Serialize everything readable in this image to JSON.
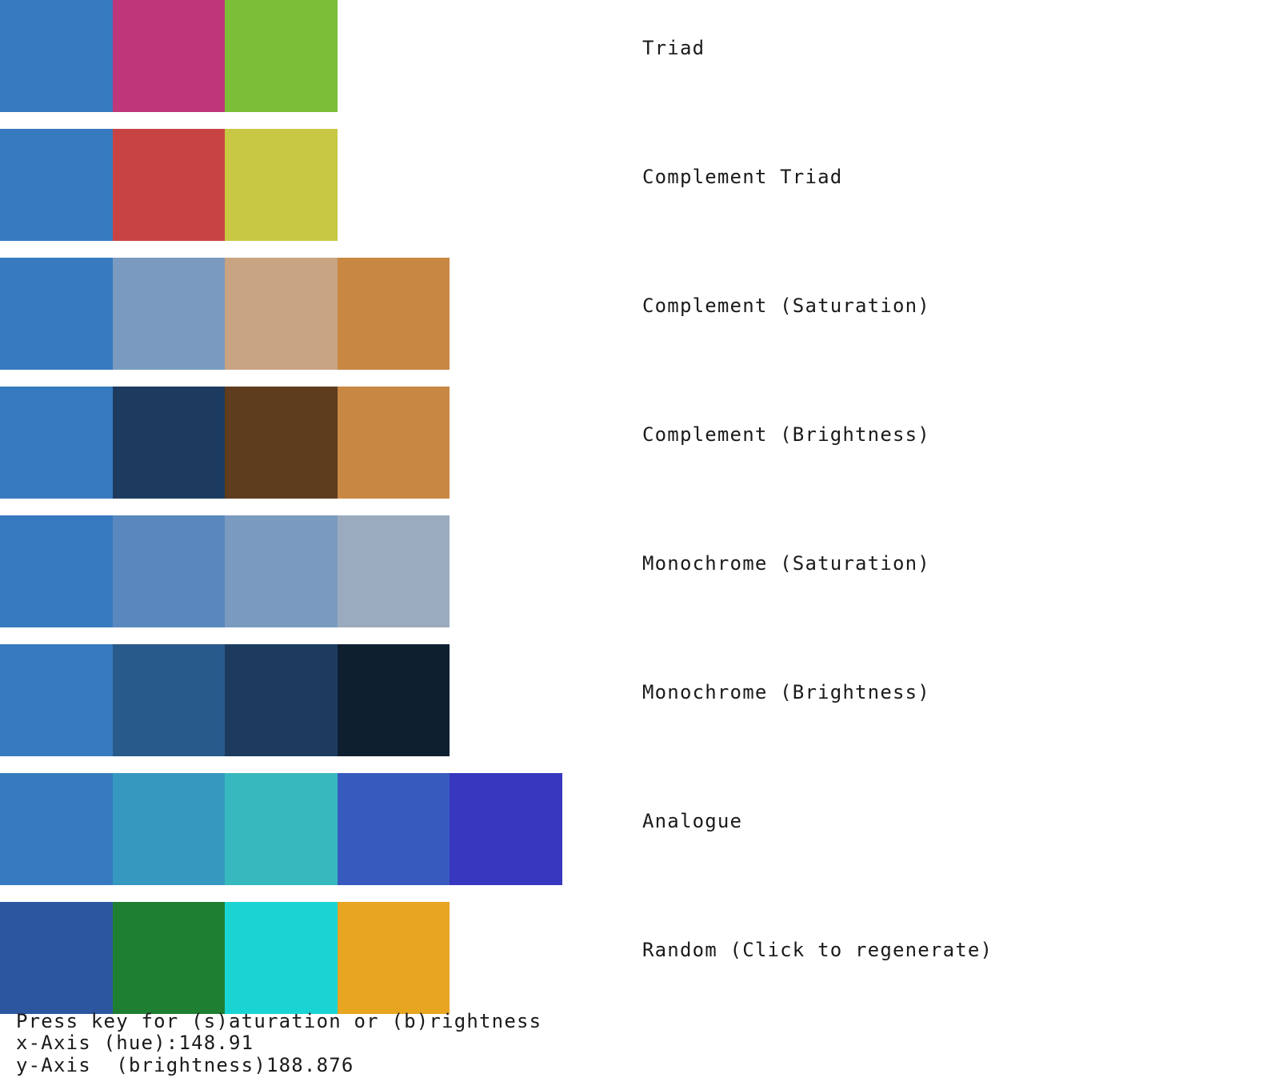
{
  "rows": [
    {
      "label": "Triad",
      "colors": [
        "#377abf",
        "#be377b",
        "#7bbe37"
      ]
    },
    {
      "label": "Complement Triad",
      "colors": [
        "#377abf",
        "#c84444",
        "#c8c844"
      ]
    },
    {
      "label": "Complement (Saturation)",
      "colors": [
        "#377abf",
        "#7a9bbf",
        "#c8a482",
        "#c88844"
      ]
    },
    {
      "label": "Complement (Brightness)",
      "colors": [
        "#377abf",
        "#1c3b5e",
        "#5e3c1e",
        "#c88844"
      ]
    },
    {
      "label": "Monochrome (Saturation)",
      "colors": [
        "#377abf",
        "#5988bf",
        "#7a9bbf",
        "#9babbf"
      ]
    },
    {
      "label": "Monochrome (Brightness)",
      "colors": [
        "#377abf",
        "#285a8c",
        "#1c3b5e",
        "#0e1f30"
      ]
    },
    {
      "label": "Analogue",
      "colors": [
        "#377abf",
        "#3798bf",
        "#37b8bf",
        "#375abf",
        "#3738bf"
      ]
    },
    {
      "label": "Random (Click to regenerate)",
      "colors": [
        "#2c569f",
        "#1e7f33",
        "#1ad4d4",
        "#e8a520"
      ]
    }
  ],
  "status": {
    "line1": "Press key for (s)aturation or (b)rightness",
    "line2": "x-Axis (hue):148.91",
    "line3": "y-Axis  (brightness)188.876"
  }
}
